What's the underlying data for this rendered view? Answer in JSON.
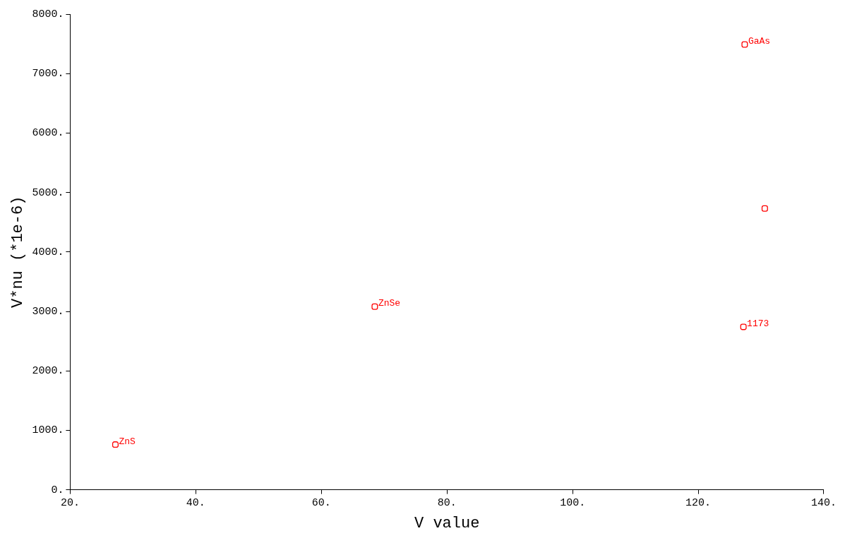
{
  "chart_data": {
    "type": "scatter",
    "xlabel": "V value",
    "ylabel": "V*nu (*1e-6)",
    "x": [
      27.2,
      68.5,
      127.4,
      130.6,
      127.2
    ],
    "series": [
      {
        "color": "#ff0000",
        "values": [
          760,
          3080,
          7490,
          4730,
          2740
        ]
      }
    ],
    "marker": "square",
    "grid": false,
    "legend": false,
    "xlim": [
      20,
      140
    ],
    "ylim": [
      0,
      8000
    ],
    "xticks": [
      {
        "value": 20,
        "label": "20."
      },
      {
        "value": 40,
        "label": "40."
      },
      {
        "value": 60,
        "label": "60."
      },
      {
        "value": 80,
        "label": "80."
      },
      {
        "value": 100,
        "label": "100."
      },
      {
        "value": 120,
        "label": "120."
      },
      {
        "value": 140,
        "label": "140."
      }
    ],
    "yticks": [
      {
        "value": 0,
        "label": "0."
      },
      {
        "value": 1000,
        "label": "1000."
      },
      {
        "value": 2000,
        "label": "2000."
      },
      {
        "value": 3000,
        "label": "3000."
      },
      {
        "value": 4000,
        "label": "4000."
      },
      {
        "value": 5000,
        "label": "5000."
      },
      {
        "value": 6000,
        "label": "6000."
      },
      {
        "value": 7000,
        "label": "7000."
      },
      {
        "value": 8000,
        "label": "8000."
      }
    ],
    "annotations": [
      {
        "text": "ZnS",
        "x": 27.2,
        "y": 760
      },
      {
        "text": "ZnSe",
        "x": 68.5,
        "y": 3080
      },
      {
        "text": "GaAs",
        "x": 127.4,
        "y": 7490
      },
      {
        "text": "1173",
        "x": 127.2,
        "y": 2740
      }
    ]
  }
}
